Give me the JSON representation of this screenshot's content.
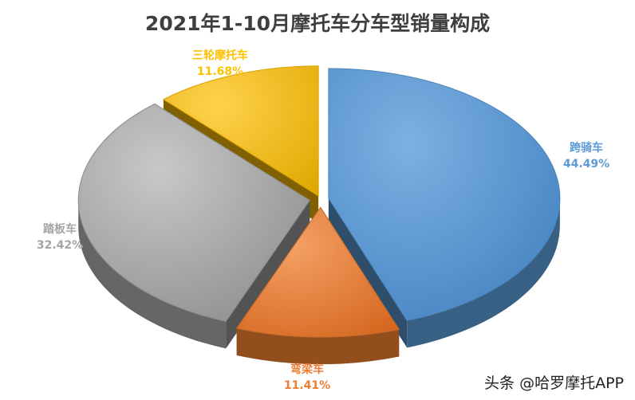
{
  "chart_data": {
    "type": "pie",
    "title": "2021年1-10月摩托车分车型销量构成",
    "slices": [
      {
        "label": "跨骑车",
        "value": 44.49,
        "value_text": "44.49%",
        "color": "#5b9bd5"
      },
      {
        "label": "弯梁车",
        "value": 11.41,
        "value_text": "11.41%",
        "color": "#ed7d31"
      },
      {
        "label": "踏板车",
        "value": 32.42,
        "value_text": "32.42%",
        "color": "#a5a5a5"
      },
      {
        "label": "三轮摩托车",
        "value": 11.68,
        "value_text": "11.68%",
        "color": "#ffc000"
      }
    ],
    "style": "3d-exploded"
  },
  "watermark": {
    "text": "头条 @哈罗摩托APP"
  }
}
